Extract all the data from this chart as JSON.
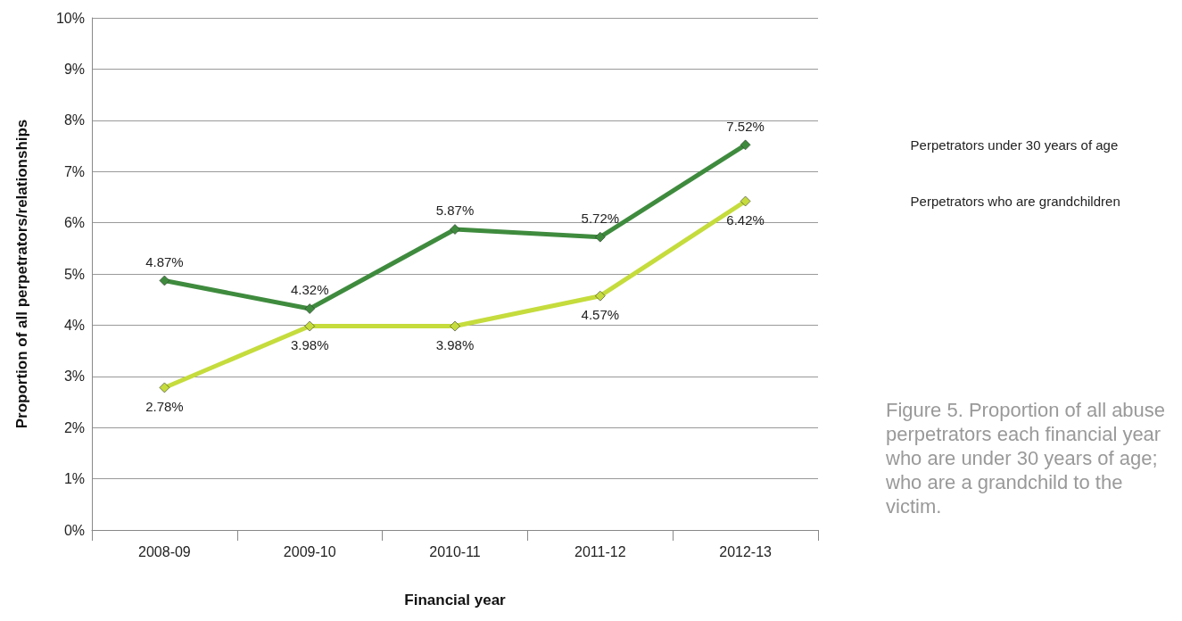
{
  "chart_data": {
    "type": "line",
    "xlabel": "Financial year",
    "ylabel": "Proportion of all perpetrators/relationships",
    "categories": [
      "2008-09",
      "2009-10",
      "2010-11",
      "2011-12",
      "2012-13"
    ],
    "series": [
      {
        "name": "Perpetrators under 30 years of age",
        "color": "#3f8b3e",
        "values": [
          4.87,
          4.32,
          5.87,
          5.72,
          7.52
        ],
        "value_labels": [
          "4.87%",
          "4.32%",
          "5.87%",
          "5.72%",
          "7.52%"
        ]
      },
      {
        "name": "Perpetrators who are grandchildren",
        "color": "#c5dc3c",
        "values": [
          2.78,
          3.98,
          3.98,
          4.57,
          6.42
        ],
        "value_labels": [
          "2.78%",
          "3.98%",
          "3.98%",
          "4.57%",
          "6.42%"
        ]
      }
    ],
    "ylim": [
      0,
      10
    ],
    "yticks": [
      {
        "value": 0,
        "label": "0%"
      },
      {
        "value": 1,
        "label": "1%"
      },
      {
        "value": 2,
        "label": "2%"
      },
      {
        "value": 3,
        "label": "3%"
      },
      {
        "value": 4,
        "label": "4%"
      },
      {
        "value": 5,
        "label": "5%"
      },
      {
        "value": 6,
        "label": "6%"
      },
      {
        "value": 7,
        "label": "7%"
      },
      {
        "value": 8,
        "label": "8%"
      },
      {
        "value": 9,
        "label": "9%"
      },
      {
        "value": 10,
        "label": "10%"
      }
    ],
    "grid": "y",
    "marker": "diamond",
    "line_style": "solid",
    "legend": false,
    "annotations": [
      "Figure 5. Proportion of all abuse perpetrators each financial year who are under 30 years of age; who are a grandchild to the victim."
    ]
  }
}
